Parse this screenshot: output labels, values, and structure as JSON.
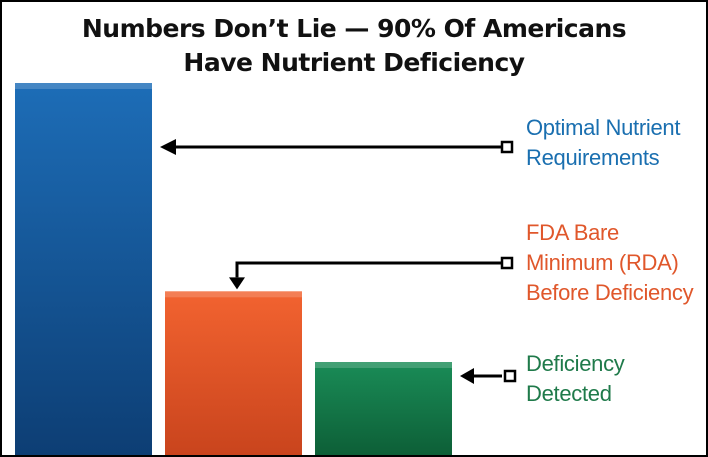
{
  "chart_data": {
    "type": "bar",
    "title": [
      "Numbers Don’t Lie — 90% Of Americans",
      "Have Nutrient Deficiency"
    ],
    "categories": [
      "Optimal Nutrient Requirements",
      "FDA Bare Minimum (RDA) Before Deficiency",
      "Deficiency Detected"
    ],
    "values": [
      100,
      44,
      25
    ],
    "ylim": [
      0,
      100
    ],
    "xlabel": "",
    "ylabel": "",
    "annotations": [
      {
        "lines": [
          "Optimal Nutrient",
          "Requirements"
        ],
        "color": "#1a6fb0"
      },
      {
        "lines": [
          "FDA Bare",
          "Minimum (RDA)",
          "Before Deficiency"
        ],
        "color": "#e0572b"
      },
      {
        "lines": [
          "Deficiency",
          "Detected"
        ],
        "color": "#1f7a4a"
      }
    ],
    "bar_colors": [
      {
        "top": "#1d6db7",
        "bottom": "#0d3e74"
      },
      {
        "top": "#f26330",
        "bottom": "#c9441d"
      },
      {
        "top": "#1a8c57",
        "bottom": "#0d5f37"
      }
    ]
  }
}
